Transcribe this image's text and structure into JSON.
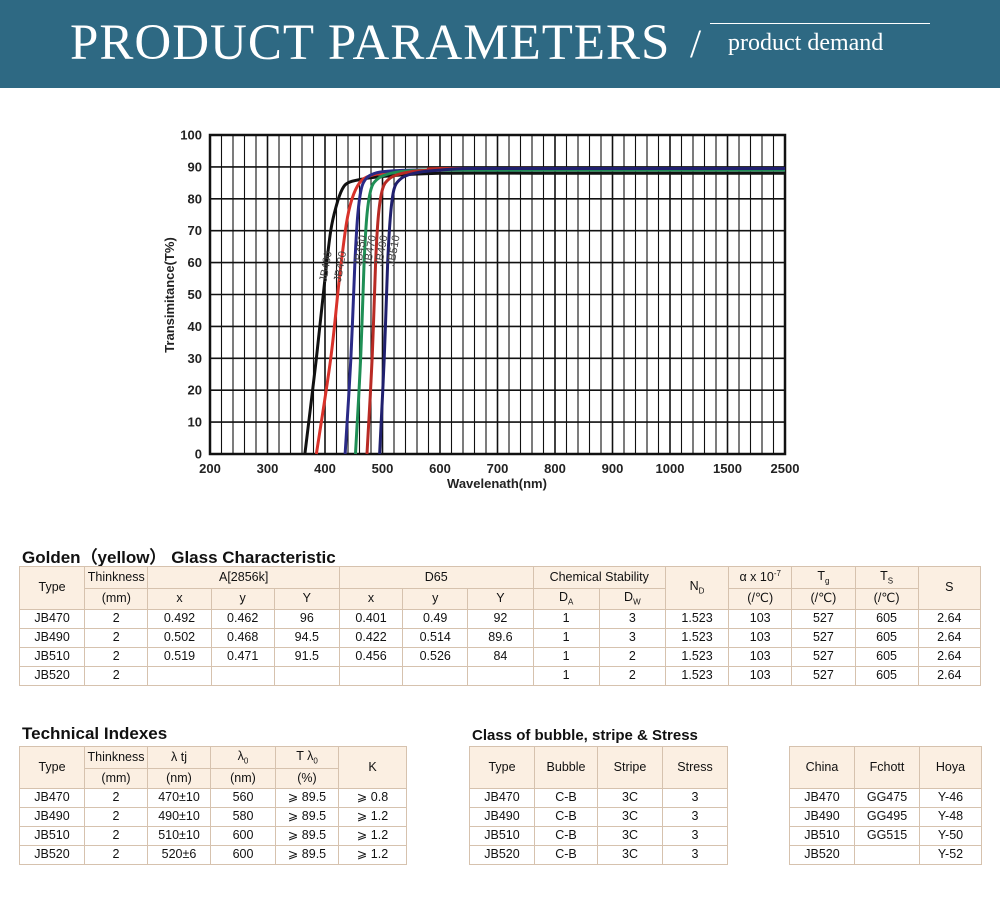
{
  "banner": {
    "title": "PRODUCT PARAMETERS",
    "slash": "/",
    "subtitle": "product demand",
    "bg_color": "#2e6983"
  },
  "chart_data": {
    "type": "line",
    "xlabel": "Wavelenath(nm)",
    "ylabel": "Transimitance(T%)",
    "x_scale": "categorical (non-linear)",
    "x_ticks": [
      "200",
      "300",
      "400",
      "500",
      "600",
      "700",
      "800",
      "900",
      "1000",
      "1500",
      "2500"
    ],
    "y_ticks": [
      "0",
      "10",
      "20",
      "30",
      "40",
      "50",
      "60",
      "70",
      "80",
      "90",
      "100"
    ],
    "ylim": [
      0,
      100
    ],
    "grid": true,
    "series": [
      {
        "name": "JB400",
        "color": "#111111",
        "x": [
          365,
          385,
          400,
          410,
          420,
          430,
          440,
          460,
          500,
          600,
          800,
          1000,
          2500
        ],
        "y": [
          0,
          30,
          55,
          70,
          78,
          83,
          85,
          86,
          87,
          88,
          88,
          88,
          88
        ]
      },
      {
        "name": "JB420",
        "color": "#d8322a",
        "x": [
          385,
          410,
          425,
          437,
          447,
          460,
          475,
          500,
          550,
          600,
          800,
          1000,
          2500
        ],
        "y": [
          0,
          30,
          55,
          72,
          80,
          85,
          87,
          88,
          88.5,
          89,
          89,
          89,
          89
        ]
      },
      {
        "name": "JB450",
        "color": "#2a2a86",
        "x": [
          435,
          445,
          452,
          457,
          463,
          470,
          480,
          500,
          550,
          600,
          800,
          1000,
          2500
        ],
        "y": [
          0,
          30,
          60,
          75,
          83,
          86,
          87.5,
          88.5,
          89,
          89,
          89,
          89,
          89
        ]
      },
      {
        "name": "JB470",
        "color": "#1f8f55",
        "x": [
          453,
          462,
          468,
          473,
          480,
          490,
          505,
          530,
          570,
          600,
          800,
          1000,
          2500
        ],
        "y": [
          0,
          30,
          60,
          75,
          83,
          86,
          87.5,
          88.5,
          89,
          89,
          89,
          89,
          89
        ]
      },
      {
        "name": "JB490",
        "color": "#b82a24",
        "x": [
          473,
          482,
          488,
          493,
          500,
          510,
          525,
          550,
          580,
          600,
          800,
          1000,
          2500
        ],
        "y": [
          0,
          30,
          60,
          75,
          83,
          86,
          87.5,
          88.5,
          89,
          89.5,
          89.5,
          89.5,
          89.5
        ]
      },
      {
        "name": "JB510",
        "color": "#20206e",
        "x": [
          495,
          503,
          509,
          514,
          520,
          530,
          545,
          570,
          600,
          650,
          800,
          1000,
          2500
        ],
        "y": [
          0,
          30,
          60,
          75,
          83,
          86,
          87.5,
          88.5,
          89,
          89.5,
          89.5,
          89.5,
          89.5
        ]
      }
    ]
  },
  "golden": {
    "title": "Golden（yellow） Glass Characteristic",
    "headers": {
      "type": "Type",
      "thickness": "Thinkness",
      "thickness_unit": "(mm)",
      "a2856": "A[2856k]",
      "d65": "D65",
      "chem": "Chemical Stability",
      "x": "x",
      "y": "y",
      "Y": "Y",
      "da": "D",
      "da_sub": "A",
      "dw": "D",
      "dw_sub": "W",
      "nd": "N",
      "nd_sub": "D",
      "alpha": "α x 10",
      "alpha_sup": "-7",
      "alpha_unit": "(/℃)",
      "tg": "T",
      "tg_sub": "g",
      "tg_unit": "(/℃)",
      "ts": "T",
      "ts_sub": "S",
      "ts_unit": "(/℃)",
      "s": "S"
    },
    "rows": [
      [
        "JB470",
        "2",
        "0.492",
        "0.462",
        "96",
        "0.401",
        "0.49",
        "92",
        "1",
        "3",
        "1.523",
        "103",
        "527",
        "605",
        "2.64"
      ],
      [
        "JB490",
        "2",
        "0.502",
        "0.468",
        "94.5",
        "0.422",
        "0.514",
        "89.6",
        "1",
        "3",
        "1.523",
        "103",
        "527",
        "605",
        "2.64"
      ],
      [
        "JB510",
        "2",
        "0.519",
        "0.471",
        "91.5",
        "0.456",
        "0.526",
        "84",
        "1",
        "2",
        "1.523",
        "103",
        "527",
        "605",
        "2.64"
      ],
      [
        "JB520",
        "2",
        "",
        "",
        "",
        "",
        "",
        "",
        "1",
        "2",
        "1.523",
        "103",
        "527",
        "605",
        "2.64"
      ]
    ]
  },
  "technical": {
    "title": "Technical Indexes",
    "headers": {
      "type": "Type",
      "thickness": "Thinkness",
      "thickness_unit": "(mm)",
      "ltj": "λ tj",
      "ltj_unit": "(nm)",
      "l0": "λ",
      "l0_sub": "0",
      "l0_unit": "(nm)",
      "tl0": "T λ",
      "tl0_sub": "0",
      "tl0_unit": "(%)",
      "k": "K"
    },
    "rows": [
      [
        "JB470",
        "2",
        "470±10",
        "560",
        "⩾ 89.5",
        "⩾ 0.8"
      ],
      [
        "JB490",
        "2",
        "490±10",
        "580",
        "⩾ 89.5",
        "⩾ 1.2"
      ],
      [
        "JB510",
        "2",
        "510±10",
        "600",
        "⩾ 89.5",
        "⩾ 1.2"
      ],
      [
        "JB520",
        "2",
        "520±6",
        "600",
        "⩾ 89.5",
        "⩾ 1.2"
      ]
    ]
  },
  "bubble": {
    "title": "Class of bubble, stripe & Stress",
    "headers": [
      "Type",
      "Bubble",
      "Stripe",
      "Stress"
    ],
    "rows": [
      [
        "JB470",
        "C-B",
        "3C",
        "3"
      ],
      [
        "JB490",
        "C-B",
        "3C",
        "3"
      ],
      [
        "JB510",
        "C-B",
        "3C",
        "3"
      ],
      [
        "JB520",
        "C-B",
        "3C",
        "3"
      ]
    ]
  },
  "equivalents": {
    "headers": [
      "China",
      "Fchott",
      "Hoya"
    ],
    "rows": [
      [
        "JB470",
        "GG475",
        "Y-46"
      ],
      [
        "JB490",
        "GG495",
        "Y-48"
      ],
      [
        "JB510",
        "GG515",
        "Y-50"
      ],
      [
        "JB520",
        "",
        "Y-52"
      ]
    ]
  }
}
